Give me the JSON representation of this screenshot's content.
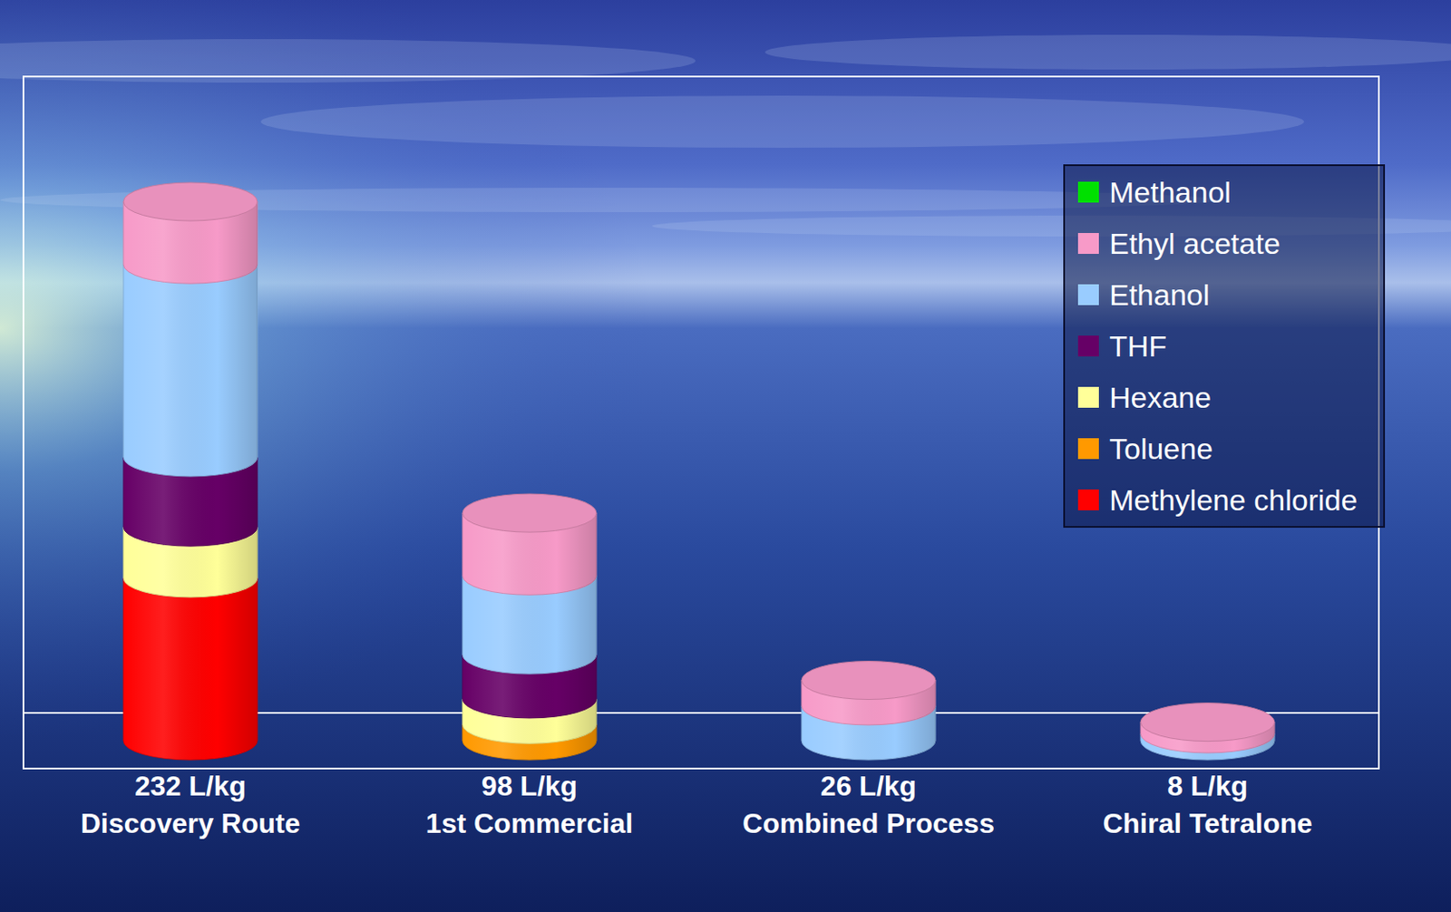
{
  "chart_data": {
    "type": "bar",
    "stacked": true,
    "legend": "top-right",
    "tick_labels": "x",
    "categories": [
      "232 L/kg\nDiscovery Route",
      "98 L/kg\n1st Commercial",
      "26 L/kg\nCombined Process",
      "8 L/kg\nChiral Tetralone"
    ],
    "series": [
      {
        "name": "Methylene chloride",
        "color": "#ff0000",
        "values": [
          70,
          0,
          0,
          0
        ]
      },
      {
        "name": "Toluene",
        "color": "#ff9900",
        "values": [
          0,
          7,
          0,
          0
        ]
      },
      {
        "name": "Hexane",
        "color": "#ffff99",
        "values": [
          22,
          11,
          0,
          0
        ]
      },
      {
        "name": "THF",
        "color": "#660066",
        "values": [
          30,
          19,
          0,
          0
        ]
      },
      {
        "name": "Ethanol",
        "color": "#99ccff",
        "values": [
          83,
          34,
          15,
          3
        ]
      },
      {
        "name": "Ethyl acetate",
        "color": "#f79ac8",
        "values": [
          27,
          27,
          11,
          5
        ]
      },
      {
        "name": "Methanol",
        "color": "#00e000",
        "values": [
          0,
          0,
          0,
          0
        ]
      }
    ]
  }
}
